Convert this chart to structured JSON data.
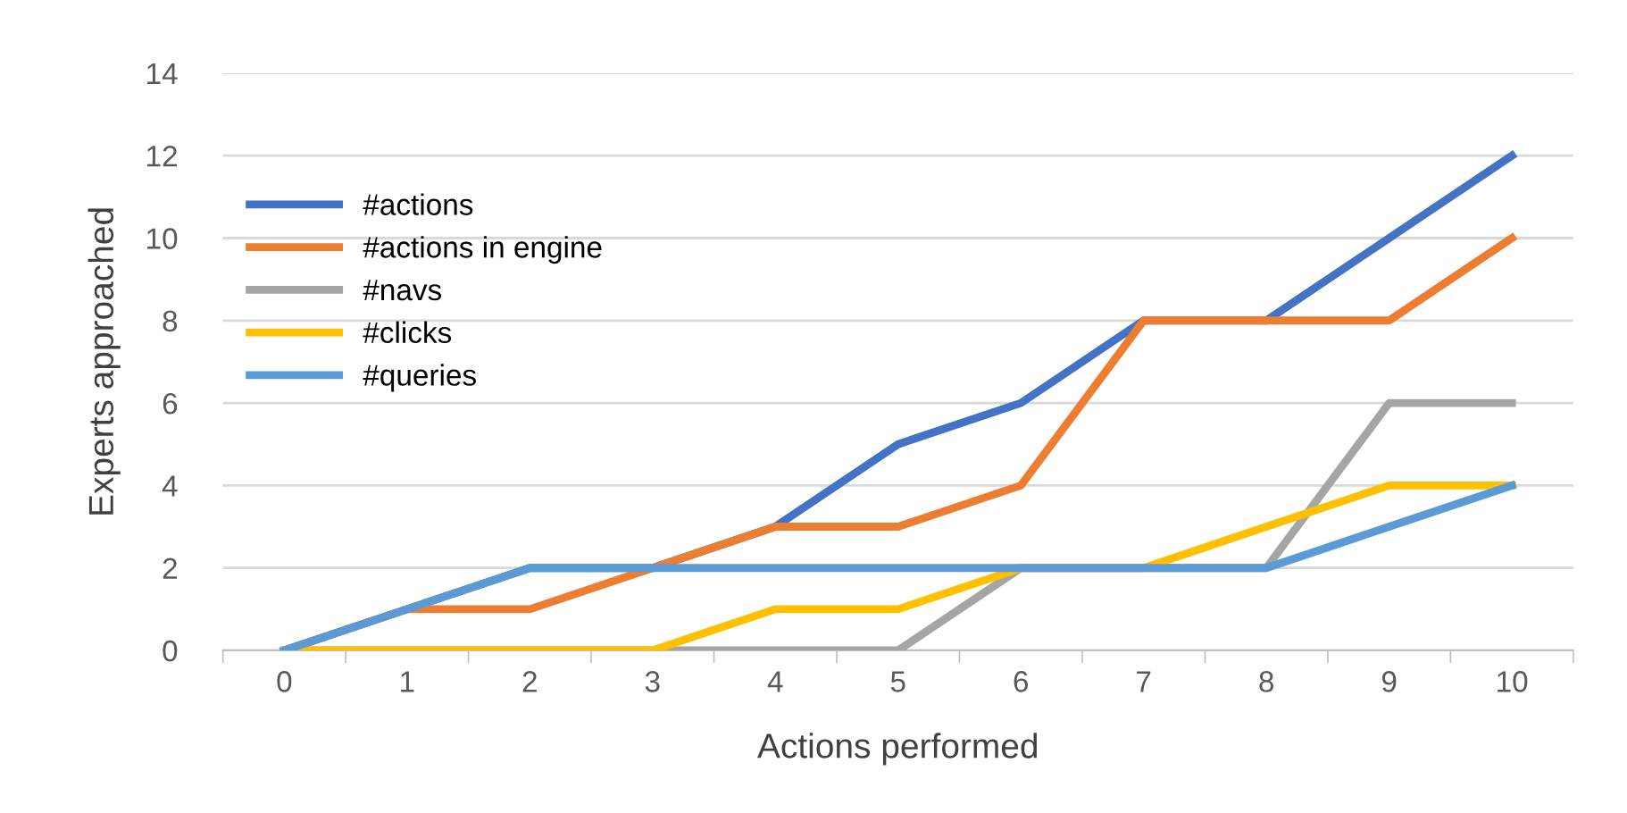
{
  "chart_data": {
    "type": "line",
    "xlabel": "Actions performed",
    "ylabel": "Experts approached",
    "categories": [
      "0",
      "1",
      "2",
      "3",
      "4",
      "5",
      "6",
      "7",
      "8",
      "9",
      "10"
    ],
    "series": [
      {
        "name": "#actions",
        "color": "#4472c4",
        "values": [
          0,
          1,
          2,
          2,
          3,
          5,
          6,
          8,
          8,
          10,
          12
        ]
      },
      {
        "name": "#actions in engine",
        "color": "#ed7d31",
        "values": [
          0,
          1,
          1,
          2,
          3,
          3,
          4,
          8,
          8,
          8,
          10
        ]
      },
      {
        "name": "#navs",
        "color": "#a5a5a5",
        "values": [
          0,
          0,
          0,
          0,
          0,
          0,
          2,
          2,
          2,
          6,
          6
        ]
      },
      {
        "name": "#clicks",
        "color": "#ffc000",
        "values": [
          0,
          0,
          0,
          0,
          1,
          1,
          2,
          2,
          3,
          4,
          4
        ]
      },
      {
        "name": "#queries",
        "color": "#5b9bd5",
        "values": [
          0,
          1,
          2,
          2,
          2,
          2,
          2,
          2,
          2,
          3,
          4
        ]
      }
    ],
    "ylim": [
      0,
      14
    ],
    "yticks": [
      0,
      2,
      4,
      6,
      8,
      10,
      12,
      14
    ],
    "grid": "y",
    "legend": "center left",
    "marker": "none",
    "line_style": "solid"
  }
}
